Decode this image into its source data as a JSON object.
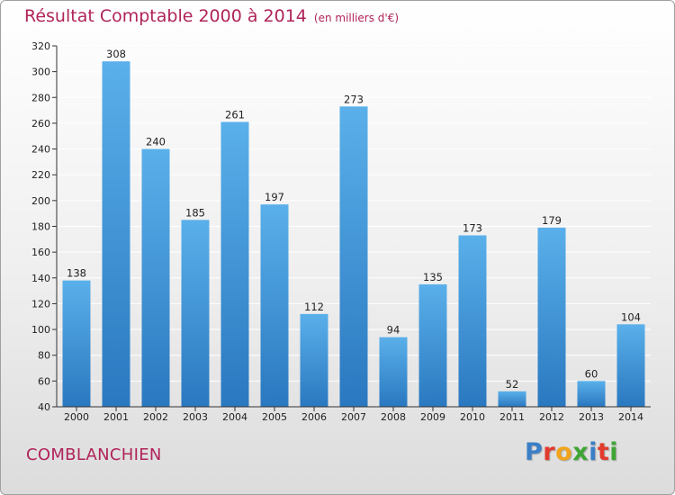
{
  "header": {
    "title": "Résultat Comptable 2000 à 2014",
    "subtitle": "(en milliers d'€)"
  },
  "footer": {
    "commune": "COMBLANCHIEN",
    "logo_text": "Proxiti",
    "logo_colors": [
      "#3a7fc7",
      "#e23a2c",
      "#f0a41c",
      "#3fa535",
      "#3a7fc7",
      "#e23a2c",
      "#3fa535"
    ]
  },
  "colors": {
    "bar_top": "#5ab0ea",
    "bar_bottom": "#2a78c0"
  },
  "chart_data": {
    "type": "bar",
    "categories": [
      "2000",
      "2001",
      "2002",
      "2003",
      "2004",
      "2005",
      "2006",
      "2007",
      "2008",
      "2009",
      "2010",
      "2011",
      "2012",
      "2013",
      "2014"
    ],
    "values": [
      138,
      308,
      240,
      185,
      261,
      197,
      112,
      273,
      94,
      135,
      173,
      52,
      179,
      60,
      104
    ],
    "title": "Résultat Comptable 2000 à 2014",
    "xlabel": "",
    "ylabel": "",
    "ylim": [
      40,
      320
    ],
    "yticks": [
      40,
      60,
      80,
      100,
      120,
      140,
      160,
      180,
      200,
      220,
      240,
      260,
      280,
      300,
      320
    ],
    "grid": true,
    "data_labels": true
  }
}
